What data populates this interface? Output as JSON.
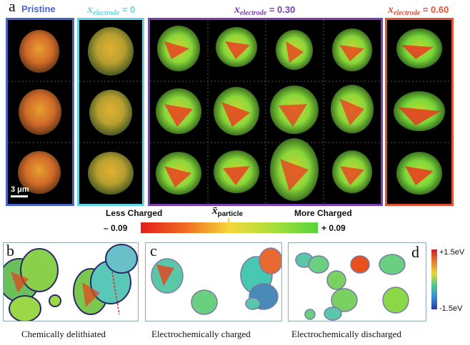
{
  "panel_a": {
    "letter": "a",
    "groups": [
      {
        "label": "Pristine",
        "color": "#4a63c7"
      },
      {
        "x_symbol": "x",
        "x_sub": "electrode",
        "value_text": " = 0",
        "color": "#5fd6e6"
      },
      {
        "x_symbol": "x",
        "x_sub": "electrode",
        "value_text": " = 0.30",
        "color": "#7b3fb8"
      },
      {
        "x_symbol": "x",
        "x_sub": "electrode",
        "value_text": " = 0.60",
        "color": "#e0533b"
      }
    ],
    "scale_bar": "3 μm",
    "colorbar": {
      "left_label": "Less Charged",
      "right_label": "More Charged",
      "middle_symbol": "x̄",
      "middle_sub": "particle",
      "min": "– 0.09",
      "max": "+ 0.09"
    }
  },
  "panel_b": {
    "letter": "b",
    "caption": "Chemically delithiated"
  },
  "panel_c": {
    "letter": "c",
    "caption": "Electrochemically charged"
  },
  "panel_d": {
    "letter": "d",
    "caption": "Electrochemically discharged",
    "colorbar_top": "+1.5eV",
    "colorbar_bottom": "-1.5eV"
  }
}
